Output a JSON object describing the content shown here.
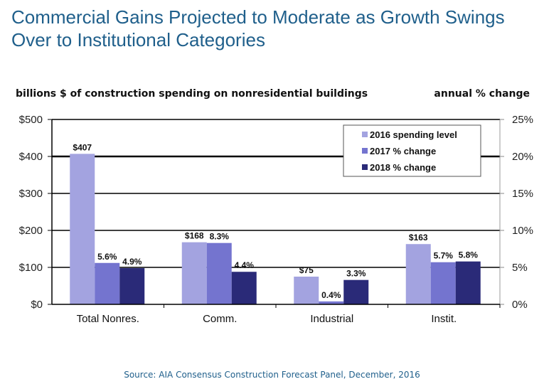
{
  "header": {
    "title": "Commercial Gains Projected to Moderate as Growth Swings Over to Institutional Categories",
    "left_axis_caption": "billions $ of construction spending on nonresidential buildings",
    "right_axis_caption": "annual % change"
  },
  "source": "Source:  AIA Consensus Construction Forecast Panel, December, 2016",
  "colors": {
    "series_2016": "#a3a3e0",
    "series_2017": "#7474cf",
    "series_2018": "#2a2a78",
    "title": "#1f5f8b"
  },
  "chart_data": {
    "type": "bar",
    "title": "Commercial Gains Projected to Moderate as Growth Swings Over to Institutional Categories",
    "xlabel": "",
    "ylabel": "billions $ of construction spending on nonresidential buildings",
    "ylabel_right": "annual % change",
    "categories": [
      "Total Nonres.",
      "Comm.",
      "Industrial",
      "Instit."
    ],
    "ylim": [
      0,
      500
    ],
    "ylim_right": [
      0,
      25
    ],
    "yticks": [
      "$0",
      "$100",
      "$200",
      "$300",
      "$400",
      "$500"
    ],
    "yticks_right": [
      "0%",
      "5%",
      "10%",
      "15%",
      "20%",
      "25%"
    ],
    "grid": true,
    "legend_position": "top-right",
    "series": [
      {
        "name": "2016 spending level",
        "axis": "left",
        "values": [
          407,
          168,
          75,
          163
        ],
        "labels": [
          "$407",
          "$168",
          "$75",
          "$163"
        ]
      },
      {
        "name": "2017 % change",
        "axis": "right",
        "values": [
          5.6,
          8.3,
          0.4,
          5.7
        ],
        "labels": [
          "5.6%",
          "8.3%",
          "0.4%",
          "5.7%"
        ]
      },
      {
        "name": "2018 % change",
        "axis": "right",
        "values": [
          4.9,
          4.4,
          3.3,
          5.8
        ],
        "labels": [
          "4.9%",
          "4.4%",
          "3.3%",
          "5.8%"
        ]
      }
    ]
  }
}
